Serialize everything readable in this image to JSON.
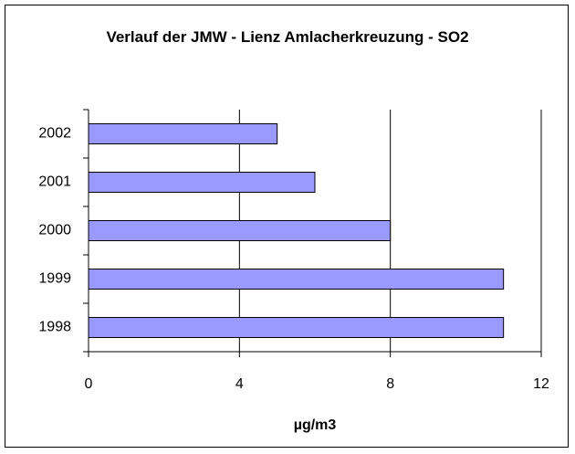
{
  "chart_data": {
    "type": "bar",
    "orientation": "horizontal",
    "title": "Verlauf der JMW - Lienz Amlacherkreuzung - SO2",
    "x_label": "µg/m3",
    "categories": [
      "1998",
      "1999",
      "2000",
      "2001",
      "2002"
    ],
    "values": [
      11,
      11,
      8,
      6,
      5
    ],
    "color": "#9999ff",
    "xlim": [
      0,
      12
    ],
    "xticks": [
      0,
      4,
      8,
      12
    ],
    "grid": true
  }
}
